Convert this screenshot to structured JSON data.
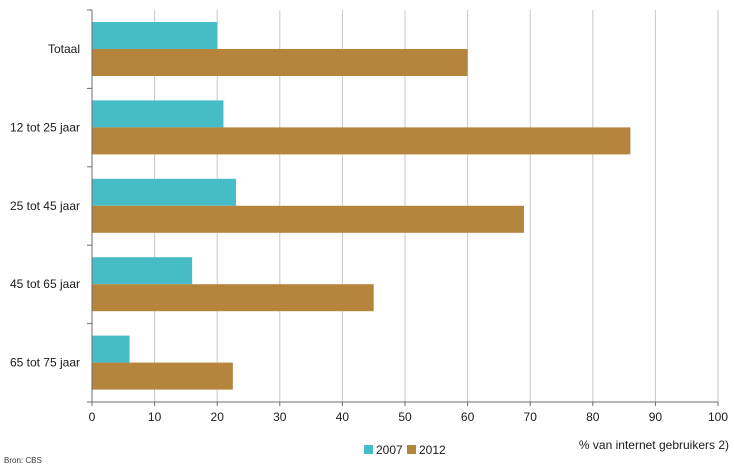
{
  "chart_data": {
    "type": "bar",
    "orientation": "horizontal",
    "categories": [
      "Totaal",
      "12 tot 25 jaar",
      "25 tot 45 jaar",
      "45 tot 65 jaar",
      "65 tot 75 jaar"
    ],
    "series": [
      {
        "name": "2007",
        "color": "#45bcc6",
        "values": [
          20,
          21,
          23,
          16,
          6
        ]
      },
      {
        "name": "2012",
        "color": "#b5843d",
        "values": [
          60,
          86,
          69,
          45,
          22.5
        ]
      }
    ],
    "xlim": [
      0,
      100
    ],
    "xticks": [
      0,
      10,
      20,
      30,
      40,
      50,
      60,
      70,
      80,
      90,
      100
    ],
    "xlabel": "% van internet gebruikers 2)",
    "grid": "vertical",
    "legend_position": "bottom-center",
    "source": "Bron: CBS"
  }
}
